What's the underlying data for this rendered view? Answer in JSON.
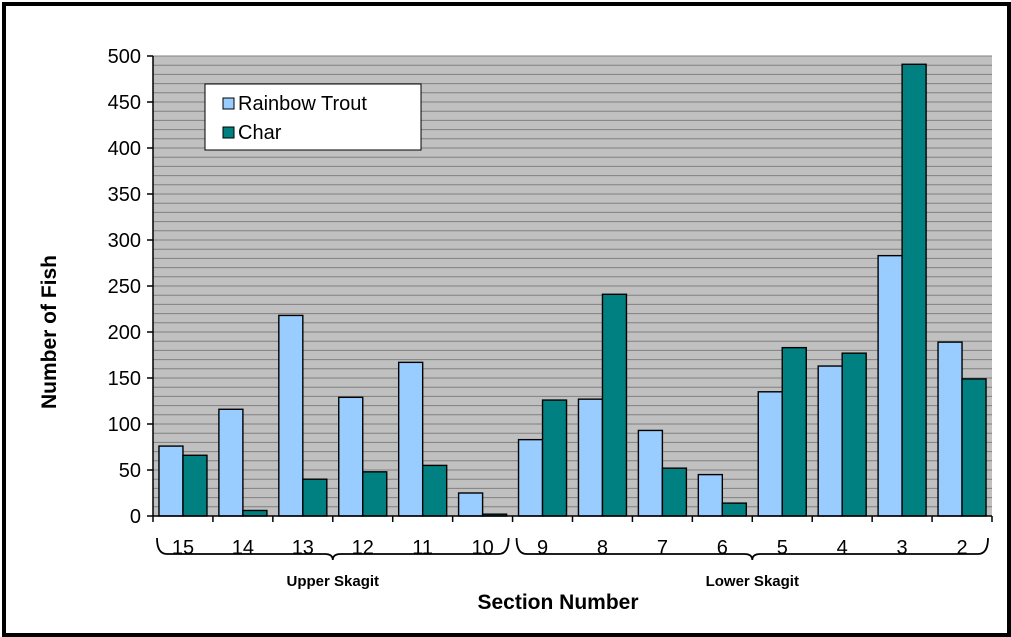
{
  "chart_data": {
    "type": "bar",
    "xlabel": "Section Number",
    "ylabel": "Number of Fish",
    "ylim": [
      0,
      500
    ],
    "ytick_step": 50,
    "grid": true,
    "legend_position": "top-left",
    "categories": [
      "15",
      "14",
      "13",
      "12",
      "11",
      "10",
      "9",
      "8",
      "7",
      "6",
      "5",
      "4",
      "3",
      "2"
    ],
    "series": [
      {
        "name": "Rainbow Trout",
        "color": "#99ccff",
        "values": [
          76,
          116,
          218,
          129,
          167,
          25,
          83,
          127,
          93,
          45,
          135,
          163,
          283,
          189
        ]
      },
      {
        "name": "Char",
        "color": "#008080",
        "values": [
          66,
          6,
          40,
          48,
          55,
          2,
          126,
          241,
          52,
          14,
          183,
          177,
          491,
          149
        ]
      }
    ],
    "groups": [
      {
        "label": "Upper Skagit",
        "categories": [
          "15",
          "14",
          "13",
          "12",
          "11",
          "10"
        ]
      },
      {
        "label": "Lower Skagit",
        "categories": [
          "9",
          "8",
          "7",
          "6",
          "5",
          "4",
          "3",
          "2"
        ]
      }
    ],
    "colors": {
      "plot_background": "#c0c0c0",
      "grid": "#808080"
    }
  }
}
